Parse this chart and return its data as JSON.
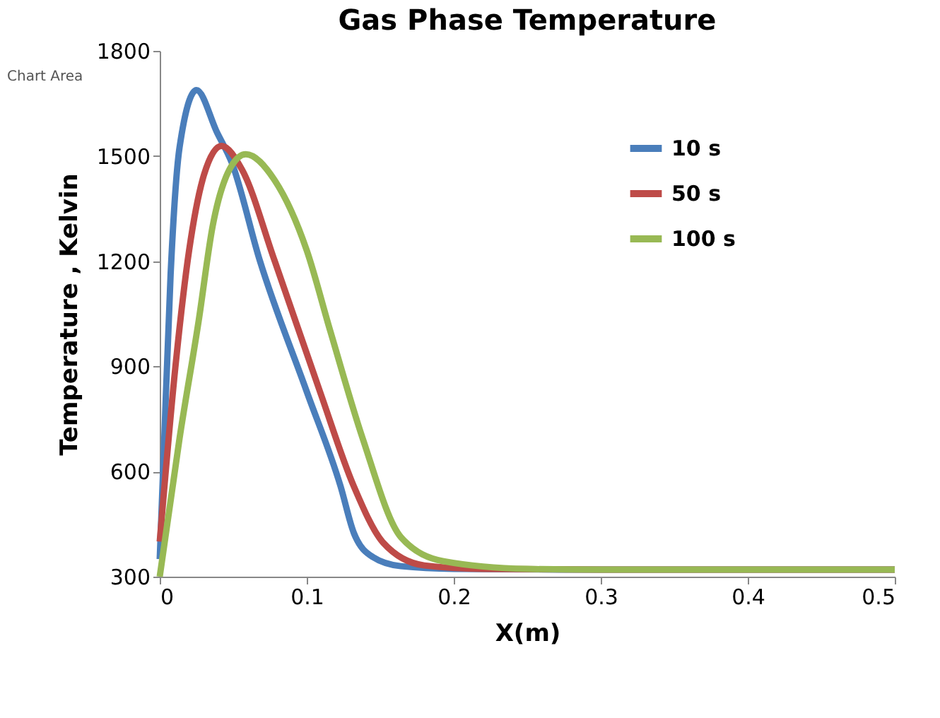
{
  "chart_data": {
    "type": "line",
    "title": "Gas Phase Temperature",
    "xlabel": "X(m)",
    "ylabel": "Temperature , Kelvin",
    "xlim": [
      0,
      0.5
    ],
    "xticks": [
      0,
      0.1,
      0.2,
      0.3,
      0.4,
      0.5
    ],
    "ylim": [
      300,
      1800
    ],
    "yticks": [
      300,
      600,
      900,
      1200,
      1500,
      1800
    ],
    "grid": false,
    "legend": "top right",
    "marker": "none",
    "line_style": "solid",
    "annotations": [
      "Chart Area"
    ],
    "series": [
      {
        "name": "10 s",
        "color": "#4a7ebb",
        "x": [
          0,
          0.0025,
          0.0074,
          0.0135,
          0.025,
          0.039,
          0.049,
          0.068,
          0.1,
          0.123,
          0.132,
          0.145,
          0.164,
          0.2,
          0.3,
          0.5
        ],
        "values": [
          350,
          626,
          1162,
          1525,
          1688,
          1567,
          1481,
          1203,
          828,
          558,
          425,
          356,
          330,
          322,
          320,
          320
        ]
      },
      {
        "name": "50 s",
        "color": "#be4b48",
        "x": [
          0,
          0.0106,
          0.02,
          0.03,
          0.042,
          0.056,
          0.078,
          0.109,
          0.132,
          0.152,
          0.18,
          0.22,
          0.3,
          0.5
        ],
        "values": [
          400,
          896,
          1231,
          1445,
          1529,
          1461,
          1203,
          828,
          558,
          397,
          332,
          322,
          320,
          320
        ]
      },
      {
        "name": "100 s",
        "color": "#98b954",
        "x": [
          0,
          0.0135,
          0.0265,
          0.036,
          0.049,
          0.0585,
          0.078,
          0.1,
          0.116,
          0.138,
          0.164,
          0.193,
          0.25,
          0.3,
          0.5
        ],
        "values": [
          300,
          695,
          1030,
          1300,
          1473,
          1505,
          1432,
          1231,
          1001,
          695,
          413,
          344,
          322,
          320,
          320
        ]
      }
    ]
  }
}
